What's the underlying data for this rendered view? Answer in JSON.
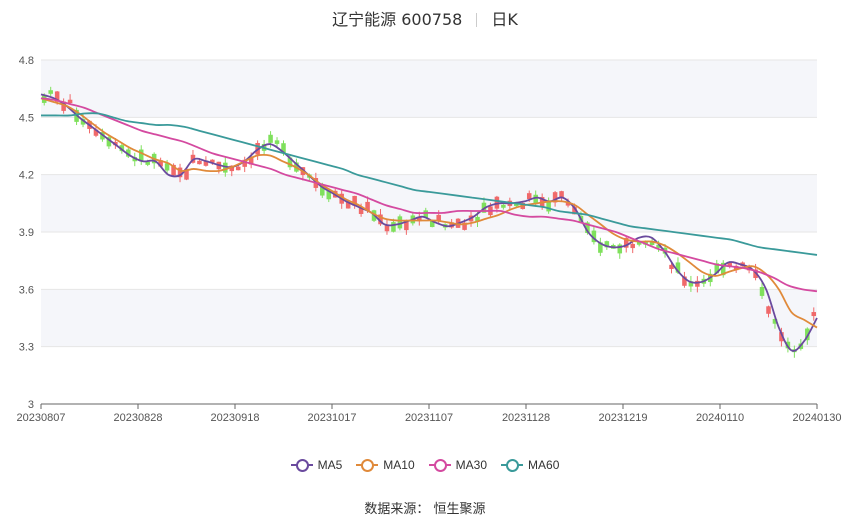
{
  "title": {
    "name": "辽宁能源 600758",
    "period": "日K"
  },
  "source": "数据来源：  恒生聚源",
  "colors": {
    "up": "#f0696a",
    "down": "#7fe05c",
    "MA5": "#6a4a9e",
    "MA10": "#e08a3a",
    "MA30": "#d44aa0",
    "MA60": "#3a9a9a",
    "grid": "#e6e6e6",
    "band": "#f5f6fa"
  },
  "chart_data": {
    "type": "candlestick",
    "ylim": [
      3,
      4.8
    ],
    "yticks": [
      "3",
      "3.3",
      "3.6",
      "3.9",
      "4.2",
      "4.5",
      "4.8"
    ],
    "xticks": [
      "20230807",
      "20230828",
      "20230918",
      "20231017",
      "20231107",
      "20231128",
      "20231219",
      "20240110",
      "20240130"
    ],
    "n_days": 120,
    "series": [
      {
        "name": "MA5",
        "values": [
          4.62,
          4.6,
          4.56,
          4.5,
          4.45,
          4.4,
          4.35,
          4.3,
          4.27,
          4.27,
          4.2,
          4.2,
          4.28,
          4.27,
          4.25,
          4.24,
          4.27,
          4.33,
          4.36,
          4.32,
          4.26,
          4.2,
          4.14,
          4.1,
          4.06,
          4.03,
          4.0,
          3.94,
          3.94,
          3.96,
          3.98,
          3.95,
          3.93,
          3.95,
          3.98,
          4.03,
          4.05,
          4.05,
          4.06,
          4.08,
          4.06,
          4.08,
          4.02,
          3.9,
          3.84,
          3.82,
          3.83,
          3.87,
          3.87,
          3.8,
          3.7,
          3.64,
          3.64,
          3.68,
          3.74,
          3.73,
          3.7,
          3.6,
          3.4,
          3.28,
          3.33,
          3.45
        ]
      },
      {
        "name": "MA10",
        "values": [
          4.6,
          4.58,
          4.56,
          4.52,
          4.47,
          4.42,
          4.38,
          4.34,
          4.31,
          4.28,
          4.26,
          4.22,
          4.23,
          4.22,
          4.22,
          4.24,
          4.27,
          4.3,
          4.3,
          4.27,
          4.24,
          4.2,
          4.15,
          4.11,
          4.07,
          4.04,
          4.0,
          3.97,
          3.96,
          3.96,
          3.96,
          3.96,
          3.95,
          3.94,
          3.95,
          3.97,
          3.99,
          4.02,
          4.04,
          4.05,
          4.06,
          4.06,
          4.04,
          3.99,
          3.94,
          3.89,
          3.86,
          3.85,
          3.85,
          3.83,
          3.79,
          3.74,
          3.69,
          3.67,
          3.69,
          3.71,
          3.72,
          3.68,
          3.6,
          3.48,
          3.44,
          3.4
        ]
      },
      {
        "name": "MA30",
        "values": [
          4.6,
          4.59,
          4.57,
          4.55,
          4.52,
          4.49,
          4.46,
          4.43,
          4.41,
          4.39,
          4.37,
          4.34,
          4.31,
          4.29,
          4.27,
          4.25,
          4.23,
          4.2,
          4.18,
          4.16,
          4.14,
          4.12,
          4.1,
          4.07,
          4.04,
          4.02,
          4.0,
          4.0,
          4.0,
          4.01,
          4.01,
          4.01,
          4.01,
          3.99,
          3.98,
          3.98,
          3.97,
          3.96,
          3.94,
          3.92,
          3.9,
          3.87,
          3.84,
          3.81,
          3.79,
          3.77,
          3.75,
          3.73,
          3.72,
          3.71,
          3.69,
          3.66,
          3.62,
          3.6,
          3.59
        ]
      },
      {
        "name": "MA60",
        "values": [
          4.51,
          4.51,
          4.51,
          4.52,
          4.52,
          4.5,
          4.48,
          4.47,
          4.46,
          4.46,
          4.45,
          4.43,
          4.41,
          4.39,
          4.37,
          4.35,
          4.33,
          4.31,
          4.29,
          4.27,
          4.25,
          4.23,
          4.2,
          4.18,
          4.16,
          4.14,
          4.12,
          4.11,
          4.1,
          4.09,
          4.08,
          4.07,
          4.06,
          4.05,
          4.04,
          4.03,
          4.01,
          4.0,
          3.99,
          3.97,
          3.95,
          3.93,
          3.92,
          3.91,
          3.9,
          3.89,
          3.88,
          3.87,
          3.86,
          3.84,
          3.82,
          3.81,
          3.8,
          3.79,
          3.78
        ]
      }
    ]
  }
}
